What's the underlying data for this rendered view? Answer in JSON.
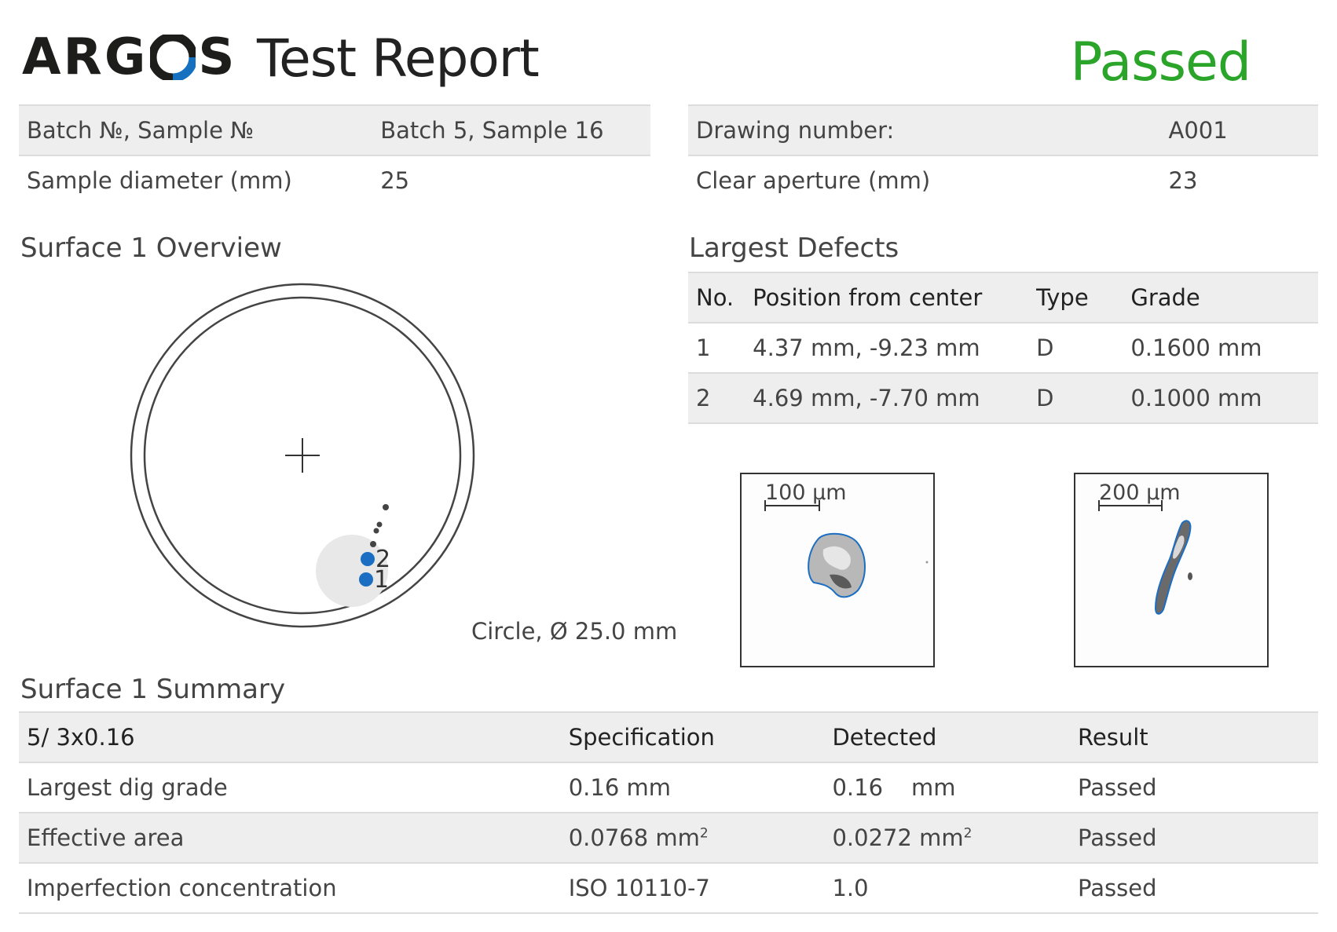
{
  "header": {
    "logo_left": "ARG",
    "logo_right": "S",
    "title": "Test Report",
    "status": "Passed"
  },
  "colors": {
    "brand_blue": "#1570c0",
    "passed_green": "#2aa52a",
    "marker_blue": "#1b6ec2",
    "row_shade": "#eeeeee"
  },
  "info_left": [
    {
      "label": "Batch №, Sample №",
      "value": "Batch 5, Sample 16"
    },
    {
      "label": "Sample diameter (mm)",
      "value": "25"
    }
  ],
  "info_right": [
    {
      "label": "Drawing number:",
      "value": "A001"
    },
    {
      "label": "Clear aperture (mm)",
      "value": "23"
    }
  ],
  "overview": {
    "title": "Surface 1 Overview",
    "caption": "Circle, Ø 25.0 mm",
    "markers": [
      {
        "label": "1",
        "x_mm": 4.37,
        "y_mm": -9.23
      },
      {
        "label": "2",
        "x_mm": 4.69,
        "y_mm": -7.7
      }
    ]
  },
  "largest_defects": {
    "title": "Largest Defects",
    "headers": [
      "No.",
      "Position from center",
      "Type",
      "Grade"
    ],
    "rows": [
      {
        "no": "1",
        "position": "4.37 mm, -9.23 mm",
        "type": "D",
        "grade": "0.1600 mm"
      },
      {
        "no": "2",
        "position": "4.69 mm, -7.70 mm",
        "type": "D",
        "grade": "0.1000 mm"
      }
    ]
  },
  "thumbnails": [
    {
      "scale_label": "100 µm"
    },
    {
      "scale_label": "200 µm"
    }
  ],
  "summary": {
    "title": "Surface 1 Summary",
    "headers": [
      "5/ 3x0.16",
      "Specification",
      "Detected",
      "Result"
    ],
    "rows": [
      {
        "name": "Largest dig grade",
        "spec": "0.16 mm",
        "detected_value": "0.16",
        "detected_unit": "mm",
        "result": "Passed"
      },
      {
        "name": "Effective area",
        "spec": "0.0768 mm",
        "spec_sup": "2",
        "detected_value": "0.0272 mm",
        "detected_sup": "2",
        "result": "Passed"
      },
      {
        "name": "Imperfection concentration",
        "spec": "ISO 10110-7",
        "detected_value": "1.0",
        "result": "Passed"
      }
    ]
  }
}
